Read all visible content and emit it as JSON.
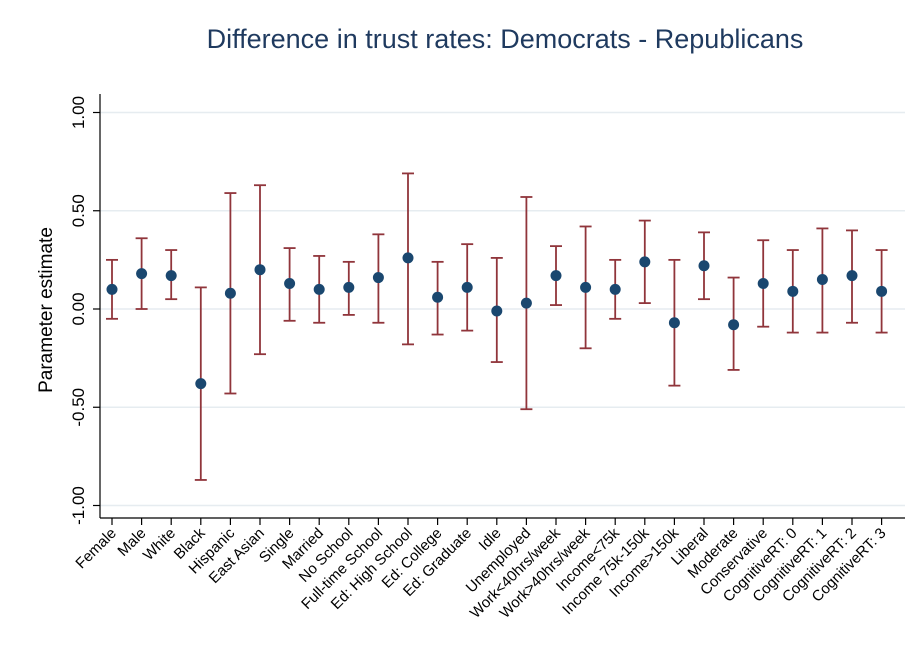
{
  "chart_data": {
    "type": "scatter",
    "title": "Difference in trust rates: Democrats - Republicans",
    "ylabel": "Parameter estimate",
    "xlabel": "",
    "ylim": [
      -1.05,
      1.05
    ],
    "yticks": [
      -1.0,
      -0.5,
      0.0,
      0.5,
      1.0
    ],
    "ytick_labels": [
      "-1.00",
      "-0.50",
      "0.00",
      "0.50",
      "1.00"
    ],
    "grid": true,
    "marker_color": "#1a476f",
    "errorbar_color": "#90353b",
    "categories": [
      "Female",
      "Male",
      "White",
      "Black",
      "Hispanic",
      "East Asian",
      "Single",
      "Married",
      "No School",
      "Full-time School",
      "Ed: High School",
      "Ed: College",
      "Ed: Graduate",
      "Idle",
      "Unemployed",
      "Work<40hrs/week",
      "Work>40hrs/week",
      "Income<75k",
      "Income 75k-150k",
      "Income>150k",
      "Liberal",
      "Moderate",
      "Conservative",
      "CognitiveRT: 0",
      "CognitiveRT: 1",
      "CognitiveRT: 2",
      "CognitiveRT: 3"
    ],
    "estimates": [
      0.1,
      0.18,
      0.17,
      -0.38,
      0.08,
      0.2,
      0.13,
      0.1,
      0.11,
      0.16,
      0.26,
      0.06,
      0.11,
      -0.01,
      0.03,
      0.17,
      0.11,
      0.1,
      0.24,
      -0.07,
      0.22,
      -0.08,
      0.13,
      0.09,
      0.15,
      0.17,
      0.09
    ],
    "ci_low": [
      -0.05,
      0.0,
      0.05,
      -0.87,
      -0.43,
      -0.23,
      -0.06,
      -0.07,
      -0.03,
      -0.07,
      -0.18,
      -0.13,
      -0.11,
      -0.27,
      -0.51,
      0.02,
      -0.2,
      -0.05,
      0.03,
      -0.39,
      0.05,
      -0.31,
      -0.09,
      -0.12,
      -0.12,
      -0.07,
      -0.12
    ],
    "ci_high": [
      0.25,
      0.36,
      0.3,
      0.11,
      0.59,
      0.63,
      0.31,
      0.27,
      0.24,
      0.38,
      0.69,
      0.24,
      0.33,
      0.26,
      0.57,
      0.32,
      0.42,
      0.25,
      0.45,
      0.25,
      0.39,
      0.16,
      0.35,
      0.3,
      0.41,
      0.4,
      0.3
    ]
  }
}
